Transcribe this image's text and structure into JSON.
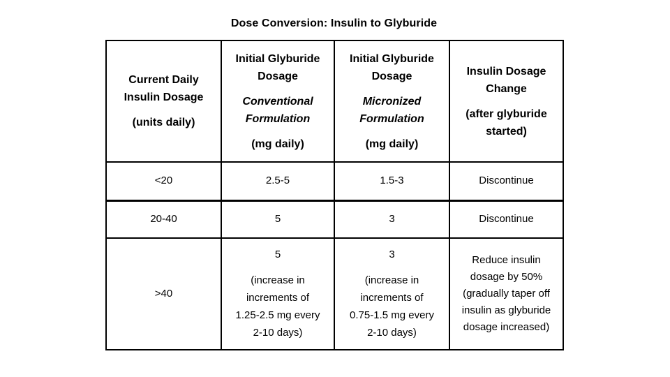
{
  "title": "Dose Conversion: Insulin to Glyburide",
  "table": {
    "headers": [
      {
        "main": "Current Daily\nInsulin Dosage",
        "unit": "(units daily)"
      },
      {
        "main": "Initial Glyburide\nDosage",
        "formulation": "Conventional\nFormulation",
        "unit": "(mg daily)"
      },
      {
        "main": "Initial Glyburide\nDosage",
        "formulation": "Micronized\nFormulation",
        "unit": "(mg daily)"
      },
      {
        "main": "Insulin Dosage\nChange",
        "unit": "(after glyburide\nstarted)"
      }
    ],
    "rows": [
      {
        "cells": [
          {
            "value": "<20"
          },
          {
            "value": "2.5-5"
          },
          {
            "value": "1.5-3"
          },
          {
            "value": "Discontinue"
          }
        ]
      },
      {
        "cells": [
          {
            "value": "20-40"
          },
          {
            "value": "5"
          },
          {
            "value": "3"
          },
          {
            "value": "Discontinue"
          }
        ]
      },
      {
        "cells": [
          {
            "value": ">40"
          },
          {
            "value": "5",
            "note": "(increase in\nincrements of\n1.25-2.5 mg every\n2-10 days)"
          },
          {
            "value": "3",
            "note": "(increase in\nincrements of\n0.75-1.5 mg every\n2-10 days)"
          },
          {
            "value": "Reduce insulin\ndosage by 50%\n(gradually taper off\ninsulin as glyburide\ndosage increased)"
          }
        ]
      }
    ]
  },
  "colors": {
    "background": "#ffffff",
    "text": "#000000",
    "border": "#000000"
  }
}
